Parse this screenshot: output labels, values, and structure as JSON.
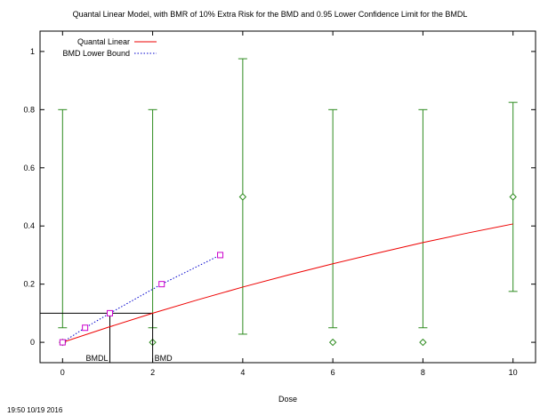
{
  "title": "Quantal Linear Model, with BMR of 10% Extra Risk for the BMD and 0.95 Lower Confidence Limit for the BMDL",
  "timestamp": "19:50 10/19 2016",
  "colors": {
    "model_line": "#ee0000",
    "bmdl_line": "#0000cc",
    "bmdl_marker": "#cc00cc",
    "data_error_bar": "#2e8b1f",
    "axis": "#000000"
  },
  "chart_data": {
    "type": "line",
    "xlabel": "Dose",
    "ylabel": "",
    "xlim": [
      -0.5,
      10.5
    ],
    "ylim": [
      -0.07,
      1.07
    ],
    "x_ticks": [
      {
        "value": 0,
        "label": "0"
      },
      {
        "value": 2,
        "label": "2"
      },
      {
        "value": 4,
        "label": "4"
      },
      {
        "value": 6,
        "label": "6"
      },
      {
        "value": 8,
        "label": "8"
      },
      {
        "value": 10,
        "label": "10"
      }
    ],
    "y_ticks": [
      {
        "value": 0,
        "label": "0"
      },
      {
        "value": 0.2,
        "label": "0.2"
      },
      {
        "value": 0.4,
        "label": "0.4"
      },
      {
        "value": 0.6,
        "label": "0.6"
      },
      {
        "value": 0.8,
        "label": "0.8"
      },
      {
        "value": 1,
        "label": "1"
      }
    ],
    "series": [
      {
        "name": "Quantal Linear",
        "style": "solid",
        "x": [
          0,
          1,
          2,
          3,
          4,
          5,
          6,
          7,
          8,
          9,
          10
        ],
        "y": [
          0,
          0.051,
          0.1,
          0.146,
          0.19,
          0.231,
          0.27,
          0.307,
          0.343,
          0.376,
          0.407
        ]
      },
      {
        "name": "BMD Lower Bound",
        "style": "dotted",
        "x": [
          0,
          0.5,
          1.05,
          2.2,
          3.5
        ],
        "y": [
          0,
          0.05,
          0.1,
          0.2,
          0.3
        ]
      }
    ],
    "observed": {
      "dose": [
        0,
        2,
        4,
        6,
        8,
        10
      ],
      "response": [
        0,
        0,
        0.5,
        0,
        0,
        0.5
      ],
      "lower": [
        0.05,
        0.05,
        0.028,
        0.05,
        0.05,
        0.175
      ],
      "upper": [
        0.8,
        0.8,
        0.975,
        0.8,
        0.8,
        0.825
      ]
    },
    "bmr": 0.1,
    "bmd": 2.0,
    "bmdl": 1.05,
    "annotations": {
      "bmdl_label": "BMDL",
      "bmd_label": "BMD"
    }
  }
}
